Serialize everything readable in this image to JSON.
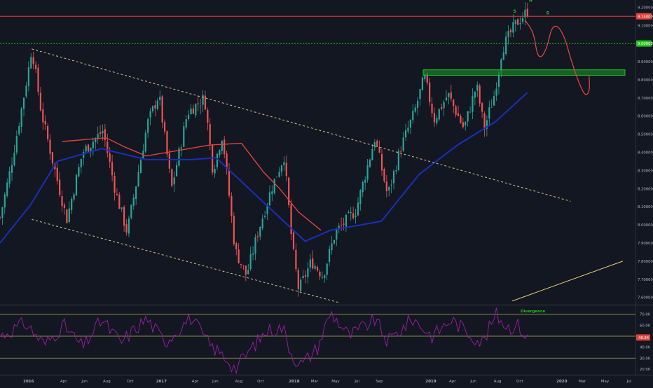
{
  "chart_data": [
    {
      "type": "candlestick",
      "instrument_hint": "weekly price chart with EMA overlays and channel",
      "ylim": [
        7.56,
        9.24
      ],
      "y_ticks": [
        "9.20000",
        "9.10000",
        "9.00000",
        "8.90000",
        "8.80000",
        "8.70000",
        "8.60000",
        "8.50000",
        "8.40000",
        "8.30000",
        "8.20000",
        "8.10000",
        "8.00000",
        "7.90000",
        "7.80000",
        "7.70000",
        "7.60000"
      ],
      "x_ticks": [
        "2016",
        "Apr",
        "Jun",
        "Aug",
        "Oct",
        "2017",
        "Apr",
        "Jun",
        "Aug",
        "Oct",
        "2018",
        "Mar",
        "May",
        "Jul",
        "Sep",
        "2019",
        "Apr",
        "Jun",
        "Aug",
        "Oct",
        "2020",
        "Mar",
        "May",
        "Jul"
      ],
      "price_labels": {
        "upper": "9.15000",
        "lower": "9.00000"
      },
      "levels": {
        "upper_red": 9.15,
        "lower_green": 9.0
      },
      "support_zone": {
        "top": 8.855,
        "bottom": 8.825
      },
      "anchor_points": [
        [
          0.0,
          8.04
        ],
        [
          0.016,
          8.3
        ],
        [
          0.037,
          8.7
        ],
        [
          0.045,
          8.86
        ],
        [
          0.05,
          8.98
        ],
        [
          0.065,
          8.62
        ],
        [
          0.083,
          8.35
        ],
        [
          0.105,
          8.03
        ],
        [
          0.13,
          8.4
        ],
        [
          0.162,
          8.52
        ],
        [
          0.182,
          8.18
        ],
        [
          0.2,
          7.96
        ],
        [
          0.232,
          8.56
        ],
        [
          0.25,
          8.72
        ],
        [
          0.27,
          8.2
        ],
        [
          0.295,
          8.62
        ],
        [
          0.322,
          8.7
        ],
        [
          0.335,
          8.3
        ],
        [
          0.35,
          8.5
        ],
        [
          0.37,
          7.86
        ],
        [
          0.388,
          7.72
        ],
        [
          0.405,
          7.95
        ],
        [
          0.427,
          8.2
        ],
        [
          0.447,
          8.38
        ],
        [
          0.46,
          7.88
        ],
        [
          0.47,
          7.64
        ],
        [
          0.49,
          7.8
        ],
        [
          0.508,
          7.72
        ],
        [
          0.528,
          7.96
        ],
        [
          0.56,
          8.08
        ],
        [
          0.59,
          8.48
        ],
        [
          0.61,
          8.16
        ],
        [
          0.63,
          8.42
        ],
        [
          0.652,
          8.62
        ],
        [
          0.668,
          8.82
        ],
        [
          0.683,
          8.58
        ],
        [
          0.705,
          8.72
        ],
        [
          0.73,
          8.53
        ],
        [
          0.75,
          8.77
        ],
        [
          0.762,
          8.53
        ],
        [
          0.778,
          8.72
        ],
        [
          0.79,
          8.97
        ],
        [
          0.81,
          9.1
        ],
        [
          0.83,
          9.18
        ]
      ],
      "ema_long": [
        [
          0.0,
          7.9
        ],
        [
          0.048,
          8.11
        ],
        [
          0.09,
          8.35
        ],
        [
          0.16,
          8.42
        ],
        [
          0.23,
          8.36
        ],
        [
          0.3,
          8.36
        ],
        [
          0.34,
          8.37
        ],
        [
          0.48,
          7.91
        ],
        [
          0.52,
          7.97
        ],
        [
          0.6,
          8.02
        ],
        [
          0.66,
          8.28
        ],
        [
          0.72,
          8.44
        ],
        [
          0.78,
          8.57
        ],
        [
          0.83,
          8.73
        ]
      ],
      "ema_short": [
        [
          0.098,
          8.46
        ],
        [
          0.132,
          8.47
        ],
        [
          0.167,
          8.48
        ],
        [
          0.196,
          8.43
        ],
        [
          0.23,
          8.38
        ],
        [
          0.28,
          8.41
        ],
        [
          0.33,
          8.44
        ],
        [
          0.38,
          8.45
        ],
        [
          0.415,
          8.29
        ],
        [
          0.44,
          8.2
        ],
        [
          0.47,
          8.07
        ],
        [
          0.505,
          7.97
        ]
      ],
      "channel_upper": [
        [
          0.05,
          8.97
        ],
        [
          0.898,
          8.13
        ]
      ],
      "channel_lower": [
        [
          0.05,
          8.03
        ],
        [
          0.535,
          7.57
        ]
      ],
      "trendline_right": [
        [
          0.806,
          7.58
        ],
        [
          0.98,
          7.8
        ]
      ],
      "projection": [
        [
          0.826,
          9.13
        ],
        [
          0.84,
          9.06
        ],
        [
          0.845,
          8.94
        ],
        [
          0.852,
          8.92
        ],
        [
          0.861,
          8.98
        ],
        [
          0.868,
          9.09
        ],
        [
          0.878,
          9.1
        ],
        [
          0.889,
          9.03
        ],
        [
          0.896,
          8.94
        ],
        [
          0.905,
          8.84
        ],
        [
          0.915,
          8.75
        ],
        [
          0.922,
          8.71
        ],
        [
          0.928,
          8.74
        ],
        [
          0.927,
          8.82
        ]
      ],
      "pattern_labels": [
        "S",
        "H",
        "S"
      ]
    },
    {
      "type": "line",
      "indicator": "RSI",
      "ylim": [
        15,
        78
      ],
      "y_ticks": [
        "70.00",
        "60.00",
        "50.00",
        "40.00",
        "30.00",
        "20.00"
      ],
      "current_value_label": "48.84",
      "levels": [
        70,
        50,
        30
      ],
      "annotation": "Divergence",
      "anchor_points": [
        [
          0.0,
          50
        ],
        [
          0.04,
          62
        ],
        [
          0.07,
          42
        ],
        [
          0.1,
          60
        ],
        [
          0.13,
          40
        ],
        [
          0.16,
          65
        ],
        [
          0.19,
          44
        ],
        [
          0.23,
          66
        ],
        [
          0.26,
          45
        ],
        [
          0.3,
          67
        ],
        [
          0.33,
          42
        ],
        [
          0.36,
          28
        ],
        [
          0.37,
          20
        ],
        [
          0.39,
          35
        ],
        [
          0.42,
          55
        ],
        [
          0.445,
          58
        ],
        [
          0.46,
          32
        ],
        [
          0.475,
          24
        ],
        [
          0.5,
          40
        ],
        [
          0.52,
          72
        ],
        [
          0.55,
          50
        ],
        [
          0.59,
          65
        ],
        [
          0.61,
          45
        ],
        [
          0.65,
          66
        ],
        [
          0.68,
          50
        ],
        [
          0.71,
          65
        ],
        [
          0.74,
          52
        ],
        [
          0.76,
          44
        ],
        [
          0.78,
          70
        ],
        [
          0.8,
          58
        ],
        [
          0.815,
          60
        ],
        [
          0.83,
          48
        ]
      ]
    }
  ]
}
